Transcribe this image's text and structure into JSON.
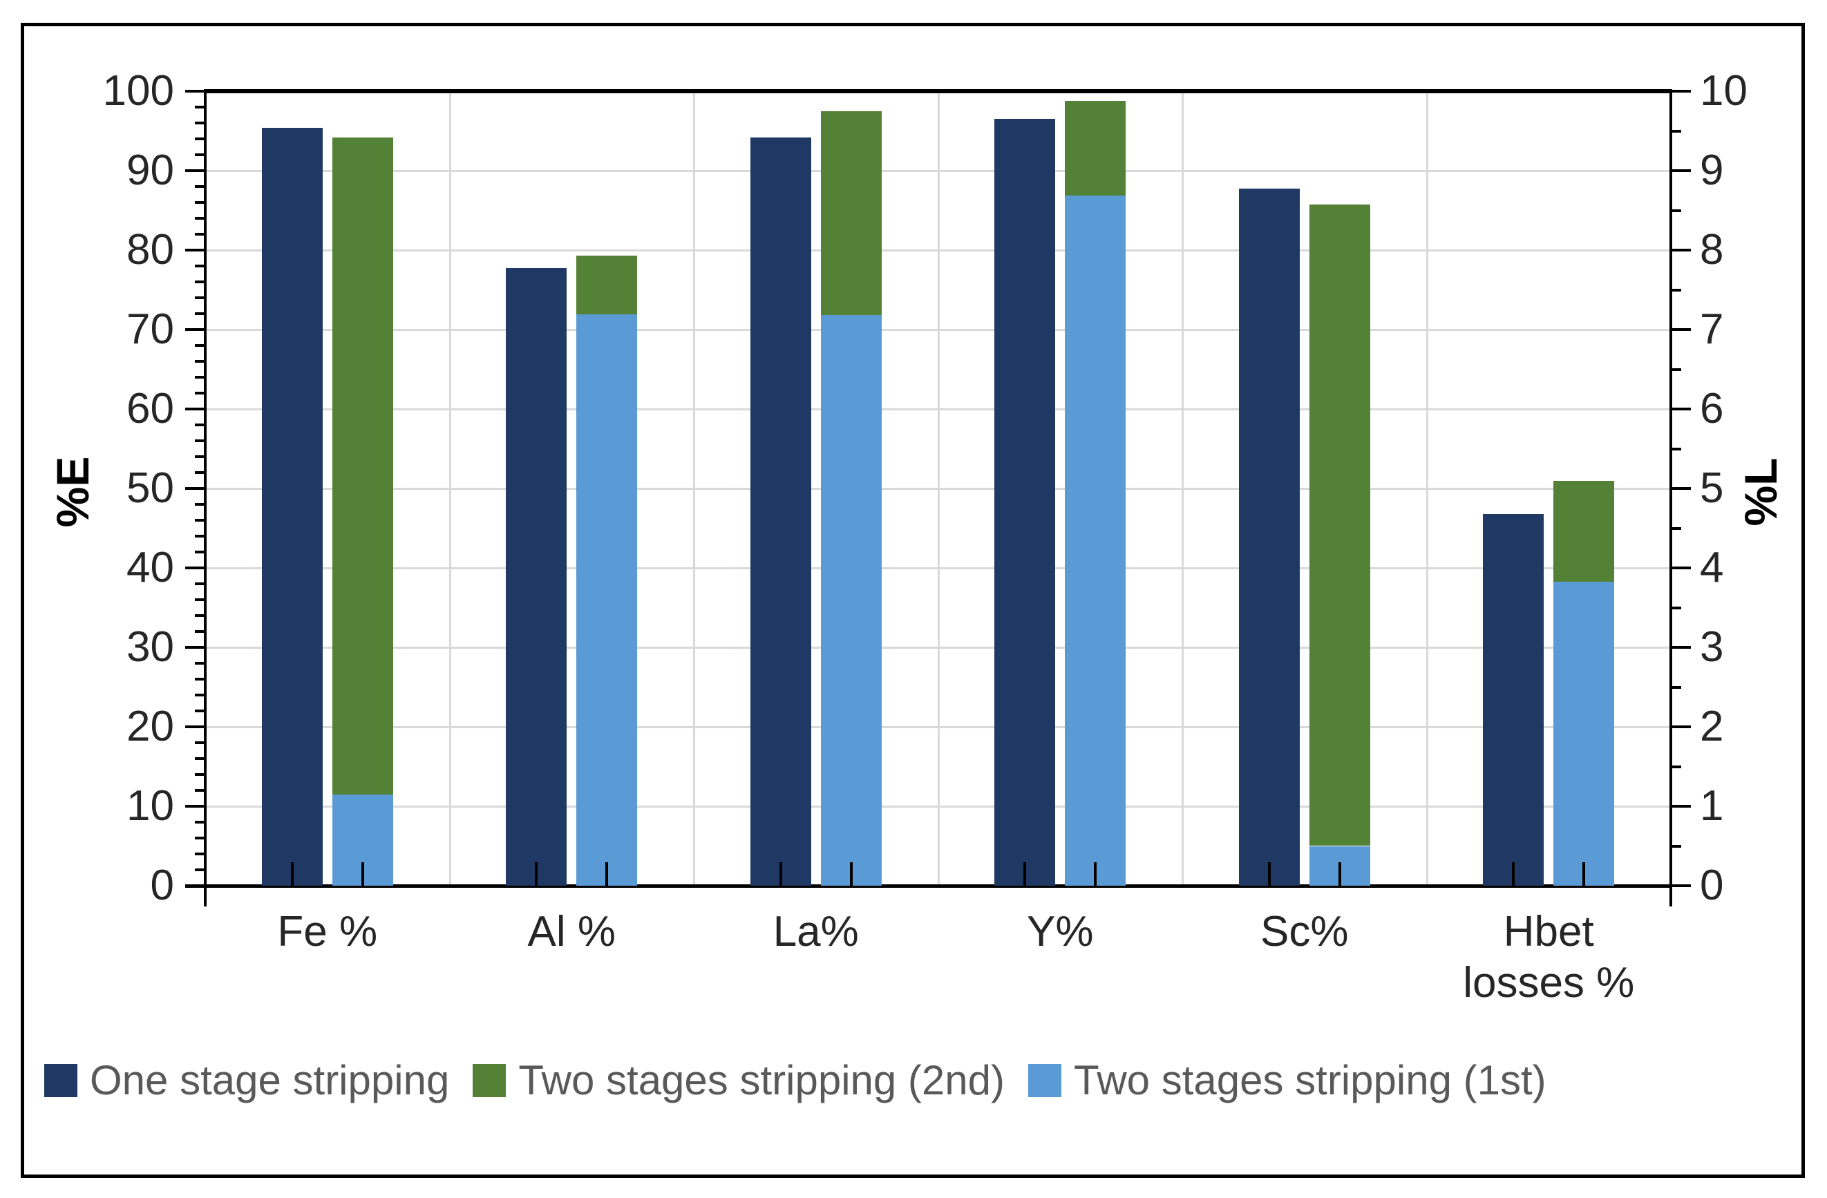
{
  "chart_data": {
    "type": "bar",
    "title": "",
    "categories": [
      "Fe %",
      "Al %",
      "La%",
      "Y%",
      "Sc%",
      "Hbet losses %"
    ],
    "category_label_lines": [
      [
        "Fe %"
      ],
      [
        "Al %"
      ],
      [
        "La%"
      ],
      [
        "Y%"
      ],
      [
        "Sc%"
      ],
      [
        "Hbet",
        "losses %"
      ]
    ],
    "series": [
      {
        "name": "One stage stripping",
        "role": "clustered",
        "color": "#1F3864",
        "values": [
          95.4,
          77.7,
          94.2,
          96.5,
          87.7,
          46.8
        ]
      },
      {
        "name": "Two stages stripping (2nd)",
        "role": "stack-top-segment",
        "color": "#538135",
        "values": [
          82.7,
          7.4,
          25.7,
          11.9,
          80.7,
          12.7
        ]
      },
      {
        "name": "Two stages stripping (1st)",
        "role": "stack-base-segment",
        "color": "#5B9BD5",
        "values": [
          11.5,
          71.9,
          71.8,
          86.9,
          5.0,
          38.3
        ]
      }
    ],
    "stack_totals": [
      94.2,
      79.3,
      97.5,
      98.8,
      85.7,
      51.0
    ],
    "left_axis": {
      "title": "%E",
      "min": 0,
      "max": 100,
      "major_interval": 10,
      "minor_interval": 2,
      "tick_labels": [
        "0",
        "10",
        "20",
        "30",
        "40",
        "50",
        "60",
        "70",
        "80",
        "90",
        "100"
      ]
    },
    "right_axis": {
      "title": "%L",
      "min": 0,
      "max": 10,
      "major_interval": 1,
      "minor_interval": 0.5,
      "tick_labels": [
        "0",
        "1",
        "2",
        "3",
        "4",
        "5",
        "6",
        "7",
        "8",
        "9",
        "10"
      ]
    },
    "legend": {
      "position": "bottom-left",
      "items": [
        {
          "label": "One stage stripping",
          "color": "#1F3864"
        },
        {
          "label": "Two stages stripping (2nd)",
          "color": "#538135"
        },
        {
          "label": "Two stages stripping (1st)",
          "color": "#5B9BD5"
        }
      ]
    },
    "grid": {
      "horizontal_major": true,
      "vertical_category_boundaries": true,
      "gridline_color": "#D9D9D9"
    },
    "colors": {
      "axis_line": "#000000",
      "tick_label_text": "#262626",
      "legend_text": "#595959",
      "background": "#FFFFFF"
    }
  }
}
